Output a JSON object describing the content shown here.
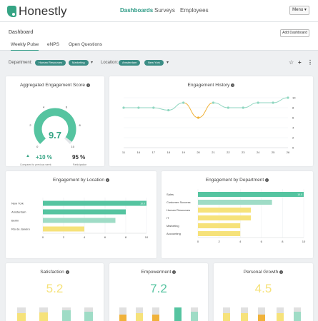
{
  "brand": {
    "name": "Honestly"
  },
  "nav": {
    "items": [
      "Dashboards",
      "Surveys",
      "Employees"
    ],
    "menu_label": "Menu"
  },
  "page": {
    "title": "Dashboard",
    "add_label": "Add Dashboard",
    "tabs": [
      "Weekly Pulse",
      "eNPS",
      "Open Questions"
    ]
  },
  "filters": {
    "department_label": "Department:",
    "department_chips": [
      "Human Resources",
      "Marketing"
    ],
    "location_label": "Location:",
    "location_chips": [
      "Amsterdam",
      "New York"
    ]
  },
  "engagement_score": {
    "title": "Aggregated Engagement Score",
    "score": "9.7",
    "score_value": 9.7,
    "gauge_min": 0,
    "gauge_max": 10,
    "gauge_ticks": [
      "0",
      "2",
      "4",
      "6",
      "8",
      "10"
    ],
    "change": "+10 %",
    "change_label": "Compared to previous week",
    "participation": "95 %",
    "participation_label": "Participation"
  },
  "chart_data": [
    {
      "type": "line",
      "title": "Engagement History",
      "x": [
        11,
        16,
        17,
        18,
        19,
        20,
        21,
        22,
        23,
        24,
        25,
        26
      ],
      "values": [
        8,
        8,
        8,
        7.5,
        9,
        6,
        9,
        8,
        8,
        9,
        9,
        10
      ],
      "highlight": {
        "from_index": 4,
        "to_index": 6,
        "color": "#f0b23a"
      },
      "ylim": [
        0,
        10
      ],
      "yticks": [
        0,
        2,
        4,
        6,
        8,
        10
      ],
      "color": "#8fd6c0"
    },
    {
      "type": "bar",
      "orientation": "horizontal",
      "title": "Engagement by Location",
      "categories": [
        "New York",
        "Amsterdam",
        "Berlin",
        "Rio de Janeiro"
      ],
      "values": [
        10.0,
        8.0,
        7.0,
        4.0
      ],
      "colors": [
        "#55c4a0",
        "#55c4a0",
        "#9fdcc6",
        "#f6e27a"
      ],
      "xlim": [
        0,
        10
      ],
      "xticks": [
        0,
        2,
        4,
        6,
        8,
        10
      ]
    },
    {
      "type": "bar",
      "orientation": "horizontal",
      "title": "Engagement by Department",
      "categories": [
        "Sales",
        "Customer Success",
        "Human Resources",
        "IT",
        "Marketing",
        "Accounting"
      ],
      "values": [
        10.0,
        7.0,
        5.0,
        5.0,
        4.0,
        4.0
      ],
      "colors": [
        "#55c4a0",
        "#9fdcc6",
        "#f6e27a",
        "#f6e27a",
        "#f6e27a",
        "#f6e27a"
      ],
      "xlim": [
        0,
        10
      ],
      "xticks": [
        0,
        2,
        4,
        6,
        8,
        10
      ]
    }
  ],
  "metric_cards": [
    {
      "title": "Satisfaction",
      "score": "5.2",
      "color": "#f6e27a"
    },
    {
      "title": "Empowerment",
      "score": "7.2",
      "color": "#55c4a0"
    },
    {
      "title": "Personal Growth",
      "score": "4.5",
      "color": "#f6e27a"
    }
  ]
}
